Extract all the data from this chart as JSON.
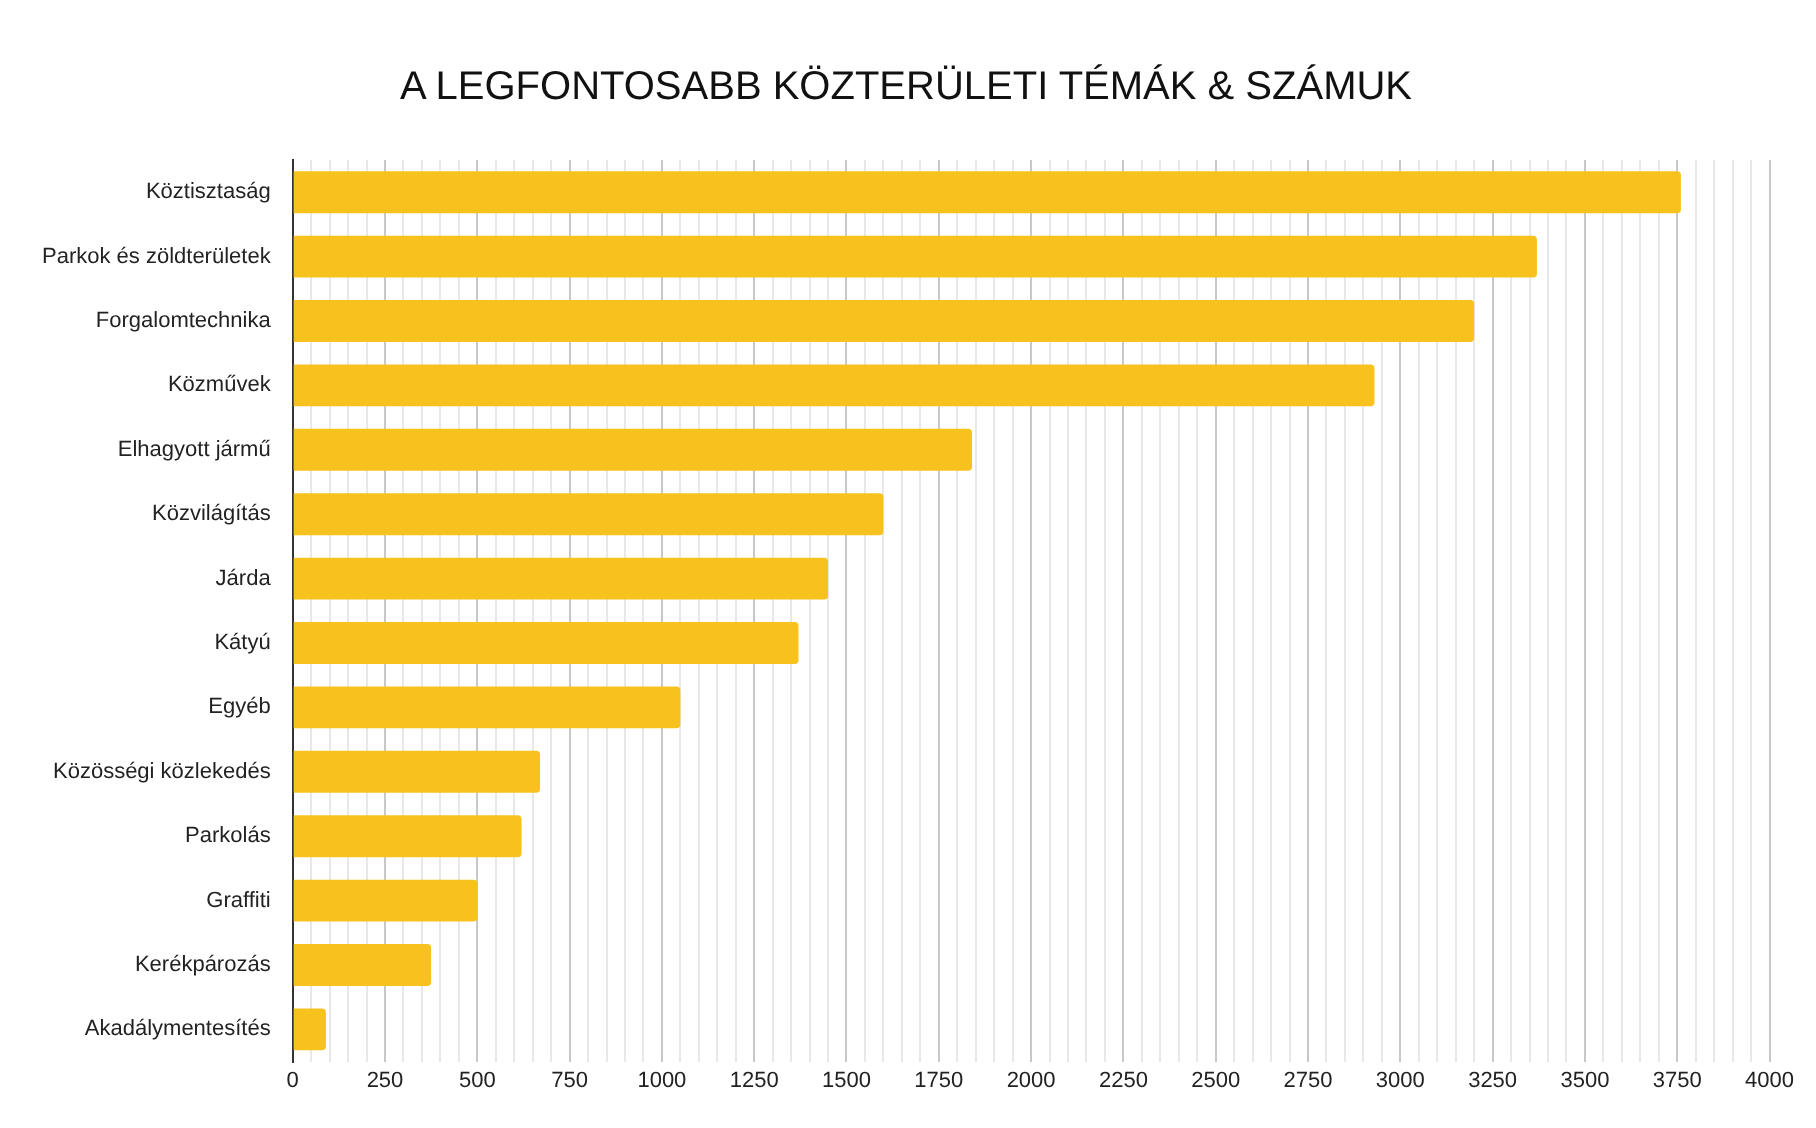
{
  "chart_data": {
    "type": "bar",
    "orientation": "horizontal",
    "title": "A LEGFONTOSABB KÖZTERÜLETI TÉMÁK & SZÁMUK",
    "categories": [
      "Köztisztaság",
      "Parkok és zöldterületek",
      "Forgalomtechnika",
      "Közművek",
      "Elhagyott jármű",
      "Közvilágítás",
      "Járda",
      "Kátyú",
      "Egyéb",
      "Közösségi közlekedés",
      "Parkolás",
      "Graffiti",
      "Kerékpározás",
      "Akadálymentesítés"
    ],
    "values": [
      3760,
      3370,
      3200,
      2930,
      1840,
      1600,
      1450,
      1370,
      1050,
      670,
      620,
      500,
      375,
      90
    ],
    "color": "#f7c21d",
    "xlim": [
      0,
      4000
    ],
    "xticks": [
      0,
      {
        "value": 50,
        "label": null
      },
      {
        "value": 100,
        "label": null
      },
      {
        "value": 150,
        "label": null
      },
      {
        "value": 200,
        "label": null
      },
      250,
      {
        "value": 300,
        "label": null
      },
      {
        "value": 350,
        "label": null
      },
      {
        "value": 400,
        "label": null
      },
      {
        "value": 450,
        "label": null
      },
      500,
      {
        "value": 550,
        "label": null
      },
      {
        "value": 600,
        "label": null
      },
      {
        "value": 650,
        "label": null
      },
      {
        "value": 700,
        "label": null
      },
      750,
      {
        "value": 800,
        "label": null
      },
      {
        "value": 850,
        "label": null
      },
      {
        "value": 900,
        "label": null
      },
      {
        "value": 950,
        "label": null
      },
      1000,
      {
        "value": 1050,
        "label": null
      },
      {
        "value": 1100,
        "label": null
      },
      {
        "value": 1150,
        "label": null
      },
      {
        "value": 1200,
        "label": null
      },
      1250,
      {
        "value": 1300,
        "label": null
      },
      {
        "value": 1350,
        "label": null
      },
      {
        "value": 1400,
        "label": null
      },
      {
        "value": 1450,
        "label": null
      },
      1500,
      {
        "value": 1550,
        "label": null
      },
      {
        "value": 1600,
        "label": null
      },
      {
        "value": 1650,
        "label": null
      },
      {
        "value": 1700,
        "label": null
      },
      1750,
      {
        "value": 1800,
        "label": null
      },
      {
        "value": 1850,
        "label": null
      },
      {
        "value": 1900,
        "label": null
      },
      {
        "value": 1950,
        "label": null
      },
      2000,
      {
        "value": 2050,
        "label": null
      },
      {
        "value": 2100,
        "label": null
      },
      {
        "value": 2150,
        "label": null
      },
      {
        "value": 2200,
        "label": null
      },
      2250,
      {
        "value": 2300,
        "label": null
      },
      {
        "value": 2350,
        "label": null
      },
      {
        "value": 2400,
        "label": null
      },
      {
        "value": 2450,
        "label": null
      },
      2500,
      {
        "value": 2550,
        "label": null
      },
      {
        "value": 2600,
        "label": null
      },
      {
        "value": 2650,
        "label": null
      },
      {
        "value": 2700,
        "label": null
      },
      2750,
      {
        "value": 2800,
        "label": null
      },
      {
        "value": 2850,
        "label": null
      },
      {
        "value": 2900,
        "label": null
      },
      {
        "value": 2950,
        "label": null
      },
      3000,
      {
        "value": 3050,
        "label": null
      },
      {
        "value": 3100,
        "label": null
      },
      {
        "value": 3150,
        "label": null
      },
      {
        "value": 3200,
        "label": null
      },
      3250,
      {
        "value": 3300,
        "label": null
      },
      {
        "value": 3350,
        "label": null
      },
      {
        "value": 3400,
        "label": null
      },
      {
        "value": 3450,
        "label": null
      },
      3500,
      {
        "value": 3550,
        "label": null
      },
      {
        "value": 3600,
        "label": null
      },
      {
        "value": 3650,
        "label": null
      },
      {
        "value": 3700,
        "label": null
      },
      3750,
      {
        "value": 3800,
        "label": null
      },
      {
        "value": 3850,
        "label": null
      },
      {
        "value": 3900,
        "label": null
      },
      {
        "value": 3950,
        "label": null
      },
      4000
    ],
    "grid": "x",
    "legend": false
  }
}
